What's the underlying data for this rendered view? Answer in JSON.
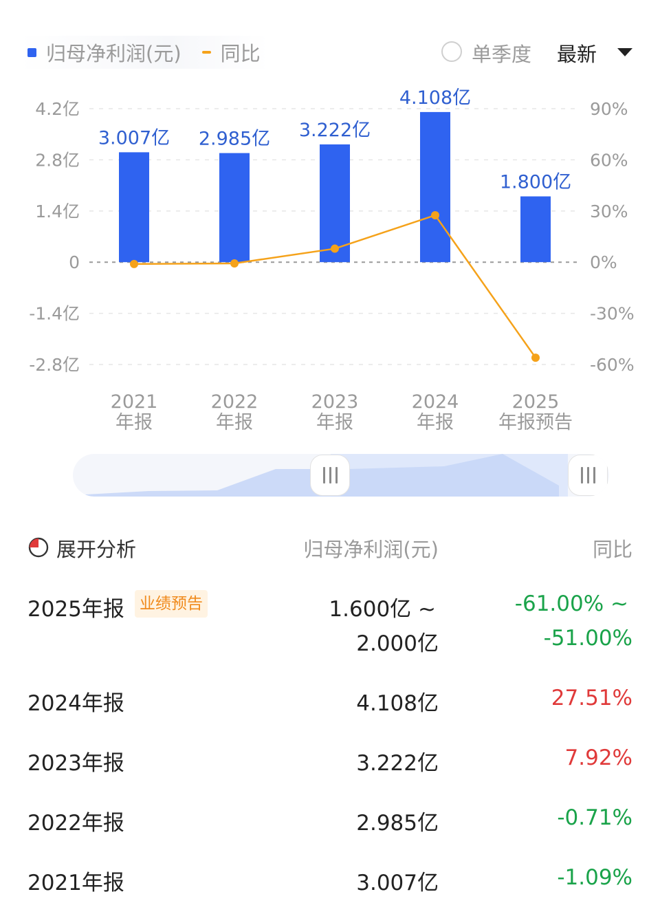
{
  "header": {
    "legend_profit": "归母净利润(元)",
    "legend_yoy": "同比",
    "single_quarter_label": "单季度",
    "latest_label": "最新",
    "radio_checked": false
  },
  "colors": {
    "bar": "#2f63f0",
    "line": "#f5a21a",
    "positive": "#e03a3a",
    "negative": "#1aa34a"
  },
  "chart_data": {
    "type": "bar",
    "categories": [
      "2021\n年报",
      "2022\n年报",
      "2023\n年报",
      "2024\n年报",
      "2025\n年报预告"
    ],
    "series": [
      {
        "name": "归母净利润(元)",
        "type": "bar",
        "axis": "left",
        "values": [
          3.007,
          2.985,
          3.222,
          4.108,
          1.8
        ],
        "labels": [
          "3.007亿",
          "2.985亿",
          "3.222亿",
          "4.108亿",
          "1.800亿"
        ]
      },
      {
        "name": "同比",
        "type": "line",
        "axis": "right",
        "values": [
          -1.09,
          -0.71,
          7.92,
          27.51,
          -56
        ]
      }
    ],
    "left_axis": {
      "ticks": [
        4.2,
        2.8,
        1.4,
        0,
        -1.4,
        -2.8
      ],
      "tick_labels": [
        "4.2亿",
        "2.8亿",
        "1.4亿",
        "0",
        "-1.4亿",
        "-2.8亿"
      ],
      "ylim": [
        -2.8,
        4.2
      ]
    },
    "right_axis": {
      "ticks": [
        90,
        60,
        30,
        0,
        -30,
        -60
      ],
      "tick_labels": [
        "90%",
        "60%",
        "30%",
        "0%",
        "-30%",
        "-60%"
      ],
      "ylim": [
        -60,
        90
      ]
    },
    "grid": true,
    "legend": "top-left"
  },
  "slider": {
    "handle_icon": "grip-icon"
  },
  "table": {
    "expand_label": "展开分析",
    "col_profit": "归母净利润(元)",
    "col_yoy": "同比",
    "rows": [
      {
        "period": "2025年报",
        "badge": "业绩预告",
        "value_line1": "1.600亿 ~",
        "value_line2": "2.000亿",
        "yoy_line1": "-61.00% ~",
        "yoy_line2": "-51.00%",
        "sign": "neg"
      },
      {
        "period": "2024年报",
        "value": "4.108亿",
        "yoy": "27.51%",
        "sign": "pos"
      },
      {
        "period": "2023年报",
        "value": "3.222亿",
        "yoy": "7.92%",
        "sign": "pos"
      },
      {
        "period": "2022年报",
        "value": "2.985亿",
        "yoy": "-0.71%",
        "sign": "neg"
      },
      {
        "period": "2021年报",
        "value": "3.007亿",
        "yoy": "-1.09%",
        "sign": "neg"
      }
    ]
  }
}
